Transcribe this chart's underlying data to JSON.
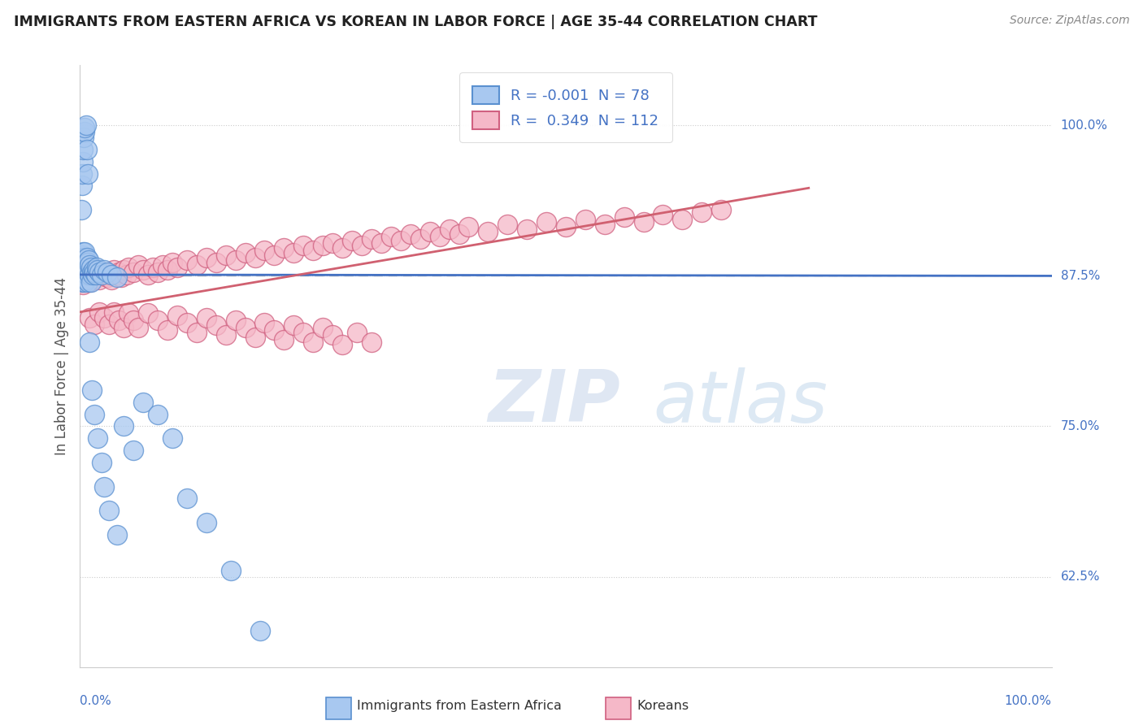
{
  "title": "IMMIGRANTS FROM EASTERN AFRICA VS KOREAN IN LABOR FORCE | AGE 35-44 CORRELATION CHART",
  "source": "Source: ZipAtlas.com",
  "ylabel": "In Labor Force | Age 35-44",
  "xmin": 0.0,
  "xmax": 1.0,
  "ymin": 0.55,
  "ymax": 1.05,
  "blue_R": -0.001,
  "blue_N": 78,
  "pink_R": 0.349,
  "pink_N": 112,
  "blue_color": "#A8C8F0",
  "blue_edge": "#5A90D0",
  "blue_line_color": "#4472C4",
  "pink_color": "#F5B8C8",
  "pink_edge": "#D06080",
  "pink_line_color": "#D06070",
  "dashed_line_y": 0.875,
  "dashed_color": "#BBBBBB",
  "legend_label_blue": "Immigrants from Eastern Africa",
  "legend_label_pink": "Koreans",
  "watermark_zip": "ZIP",
  "watermark_atlas": "atlas",
  "background_color": "#FFFFFF",
  "blue_line_y_at_0": 0.876,
  "blue_line_y_at_1": 0.875,
  "pink_line_y_at_0": 0.845,
  "pink_line_y_at_075": 0.948,
  "blue_scatter_x": [
    0.001,
    0.001,
    0.001,
    0.002,
    0.002,
    0.002,
    0.002,
    0.003,
    0.003,
    0.003,
    0.003,
    0.004,
    0.004,
    0.004,
    0.004,
    0.004,
    0.005,
    0.005,
    0.005,
    0.005,
    0.005,
    0.006,
    0.006,
    0.006,
    0.006,
    0.007,
    0.007,
    0.007,
    0.008,
    0.008,
    0.008,
    0.009,
    0.009,
    0.01,
    0.01,
    0.011,
    0.011,
    0.012,
    0.013,
    0.014,
    0.015,
    0.016,
    0.017,
    0.018,
    0.02,
    0.022,
    0.025,
    0.028,
    0.032,
    0.038,
    0.001,
    0.002,
    0.002,
    0.003,
    0.003,
    0.004,
    0.005,
    0.005,
    0.006,
    0.007,
    0.008,
    0.01,
    0.012,
    0.015,
    0.018,
    0.022,
    0.025,
    0.03,
    0.038,
    0.045,
    0.055,
    0.065,
    0.08,
    0.095,
    0.11,
    0.13,
    0.155,
    0.185
  ],
  "blue_scatter_y": [
    0.88,
    0.885,
    0.89,
    0.875,
    0.892,
    0.87,
    0.885,
    0.882,
    0.888,
    0.876,
    0.895,
    0.872,
    0.886,
    0.878,
    0.882,
    0.89,
    0.876,
    0.884,
    0.87,
    0.888,
    0.895,
    0.878,
    0.886,
    0.872,
    0.882,
    0.876,
    0.884,
    0.89,
    0.878,
    0.886,
    0.87,
    0.88,
    0.888,
    0.876,
    0.884,
    0.87,
    0.882,
    0.878,
    0.876,
    0.88,
    0.878,
    0.876,
    0.882,
    0.88,
    0.878,
    0.876,
    0.88,
    0.878,
    0.876,
    0.874,
    0.93,
    0.95,
    0.96,
    0.97,
    0.98,
    0.99,
    0.995,
    0.998,
    1.0,
    0.98,
    0.96,
    0.82,
    0.78,
    0.76,
    0.74,
    0.72,
    0.7,
    0.68,
    0.66,
    0.75,
    0.73,
    0.77,
    0.76,
    0.74,
    0.69,
    0.67,
    0.63,
    0.58
  ],
  "pink_scatter_x": [
    0.001,
    0.002,
    0.003,
    0.004,
    0.005,
    0.006,
    0.007,
    0.008,
    0.01,
    0.012,
    0.015,
    0.018,
    0.02,
    0.022,
    0.025,
    0.028,
    0.03,
    0.032,
    0.035,
    0.038,
    0.04,
    0.042,
    0.045,
    0.048,
    0.05,
    0.055,
    0.06,
    0.065,
    0.07,
    0.075,
    0.08,
    0.085,
    0.09,
    0.095,
    0.1,
    0.11,
    0.12,
    0.13,
    0.14,
    0.15,
    0.16,
    0.17,
    0.18,
    0.19,
    0.2,
    0.21,
    0.22,
    0.23,
    0.24,
    0.25,
    0.26,
    0.27,
    0.28,
    0.29,
    0.3,
    0.31,
    0.32,
    0.33,
    0.34,
    0.35,
    0.36,
    0.37,
    0.38,
    0.39,
    0.4,
    0.42,
    0.44,
    0.46,
    0.48,
    0.5,
    0.52,
    0.54,
    0.56,
    0.58,
    0.6,
    0.62,
    0.64,
    0.66,
    0.01,
    0.015,
    0.02,
    0.025,
    0.03,
    0.035,
    0.04,
    0.045,
    0.05,
    0.055,
    0.06,
    0.07,
    0.08,
    0.09,
    0.1,
    0.11,
    0.12,
    0.13,
    0.14,
    0.15,
    0.16,
    0.17,
    0.18,
    0.19,
    0.2,
    0.21,
    0.22,
    0.23,
    0.24,
    0.25,
    0.26,
    0.27,
    0.285,
    0.3
  ],
  "pink_scatter_y": [
    0.87,
    0.875,
    0.868,
    0.88,
    0.876,
    0.872,
    0.878,
    0.874,
    0.87,
    0.876,
    0.878,
    0.874,
    0.872,
    0.876,
    0.878,
    0.874,
    0.876,
    0.872,
    0.88,
    0.876,
    0.878,
    0.874,
    0.88,
    0.876,
    0.882,
    0.878,
    0.884,
    0.88,
    0.876,
    0.882,
    0.878,
    0.884,
    0.88,
    0.886,
    0.882,
    0.888,
    0.884,
    0.89,
    0.886,
    0.892,
    0.888,
    0.894,
    0.89,
    0.896,
    0.892,
    0.898,
    0.894,
    0.9,
    0.896,
    0.9,
    0.902,
    0.898,
    0.904,
    0.9,
    0.906,
    0.902,
    0.908,
    0.904,
    0.91,
    0.906,
    0.912,
    0.908,
    0.914,
    0.91,
    0.916,
    0.912,
    0.918,
    0.914,
    0.92,
    0.916,
    0.922,
    0.918,
    0.924,
    0.92,
    0.926,
    0.922,
    0.928,
    0.93,
    0.84,
    0.835,
    0.845,
    0.84,
    0.835,
    0.845,
    0.838,
    0.832,
    0.844,
    0.838,
    0.832,
    0.844,
    0.838,
    0.83,
    0.842,
    0.836,
    0.828,
    0.84,
    0.834,
    0.826,
    0.838,
    0.832,
    0.824,
    0.836,
    0.83,
    0.822,
    0.834,
    0.828,
    0.82,
    0.832,
    0.826,
    0.818,
    0.828,
    0.82
  ]
}
